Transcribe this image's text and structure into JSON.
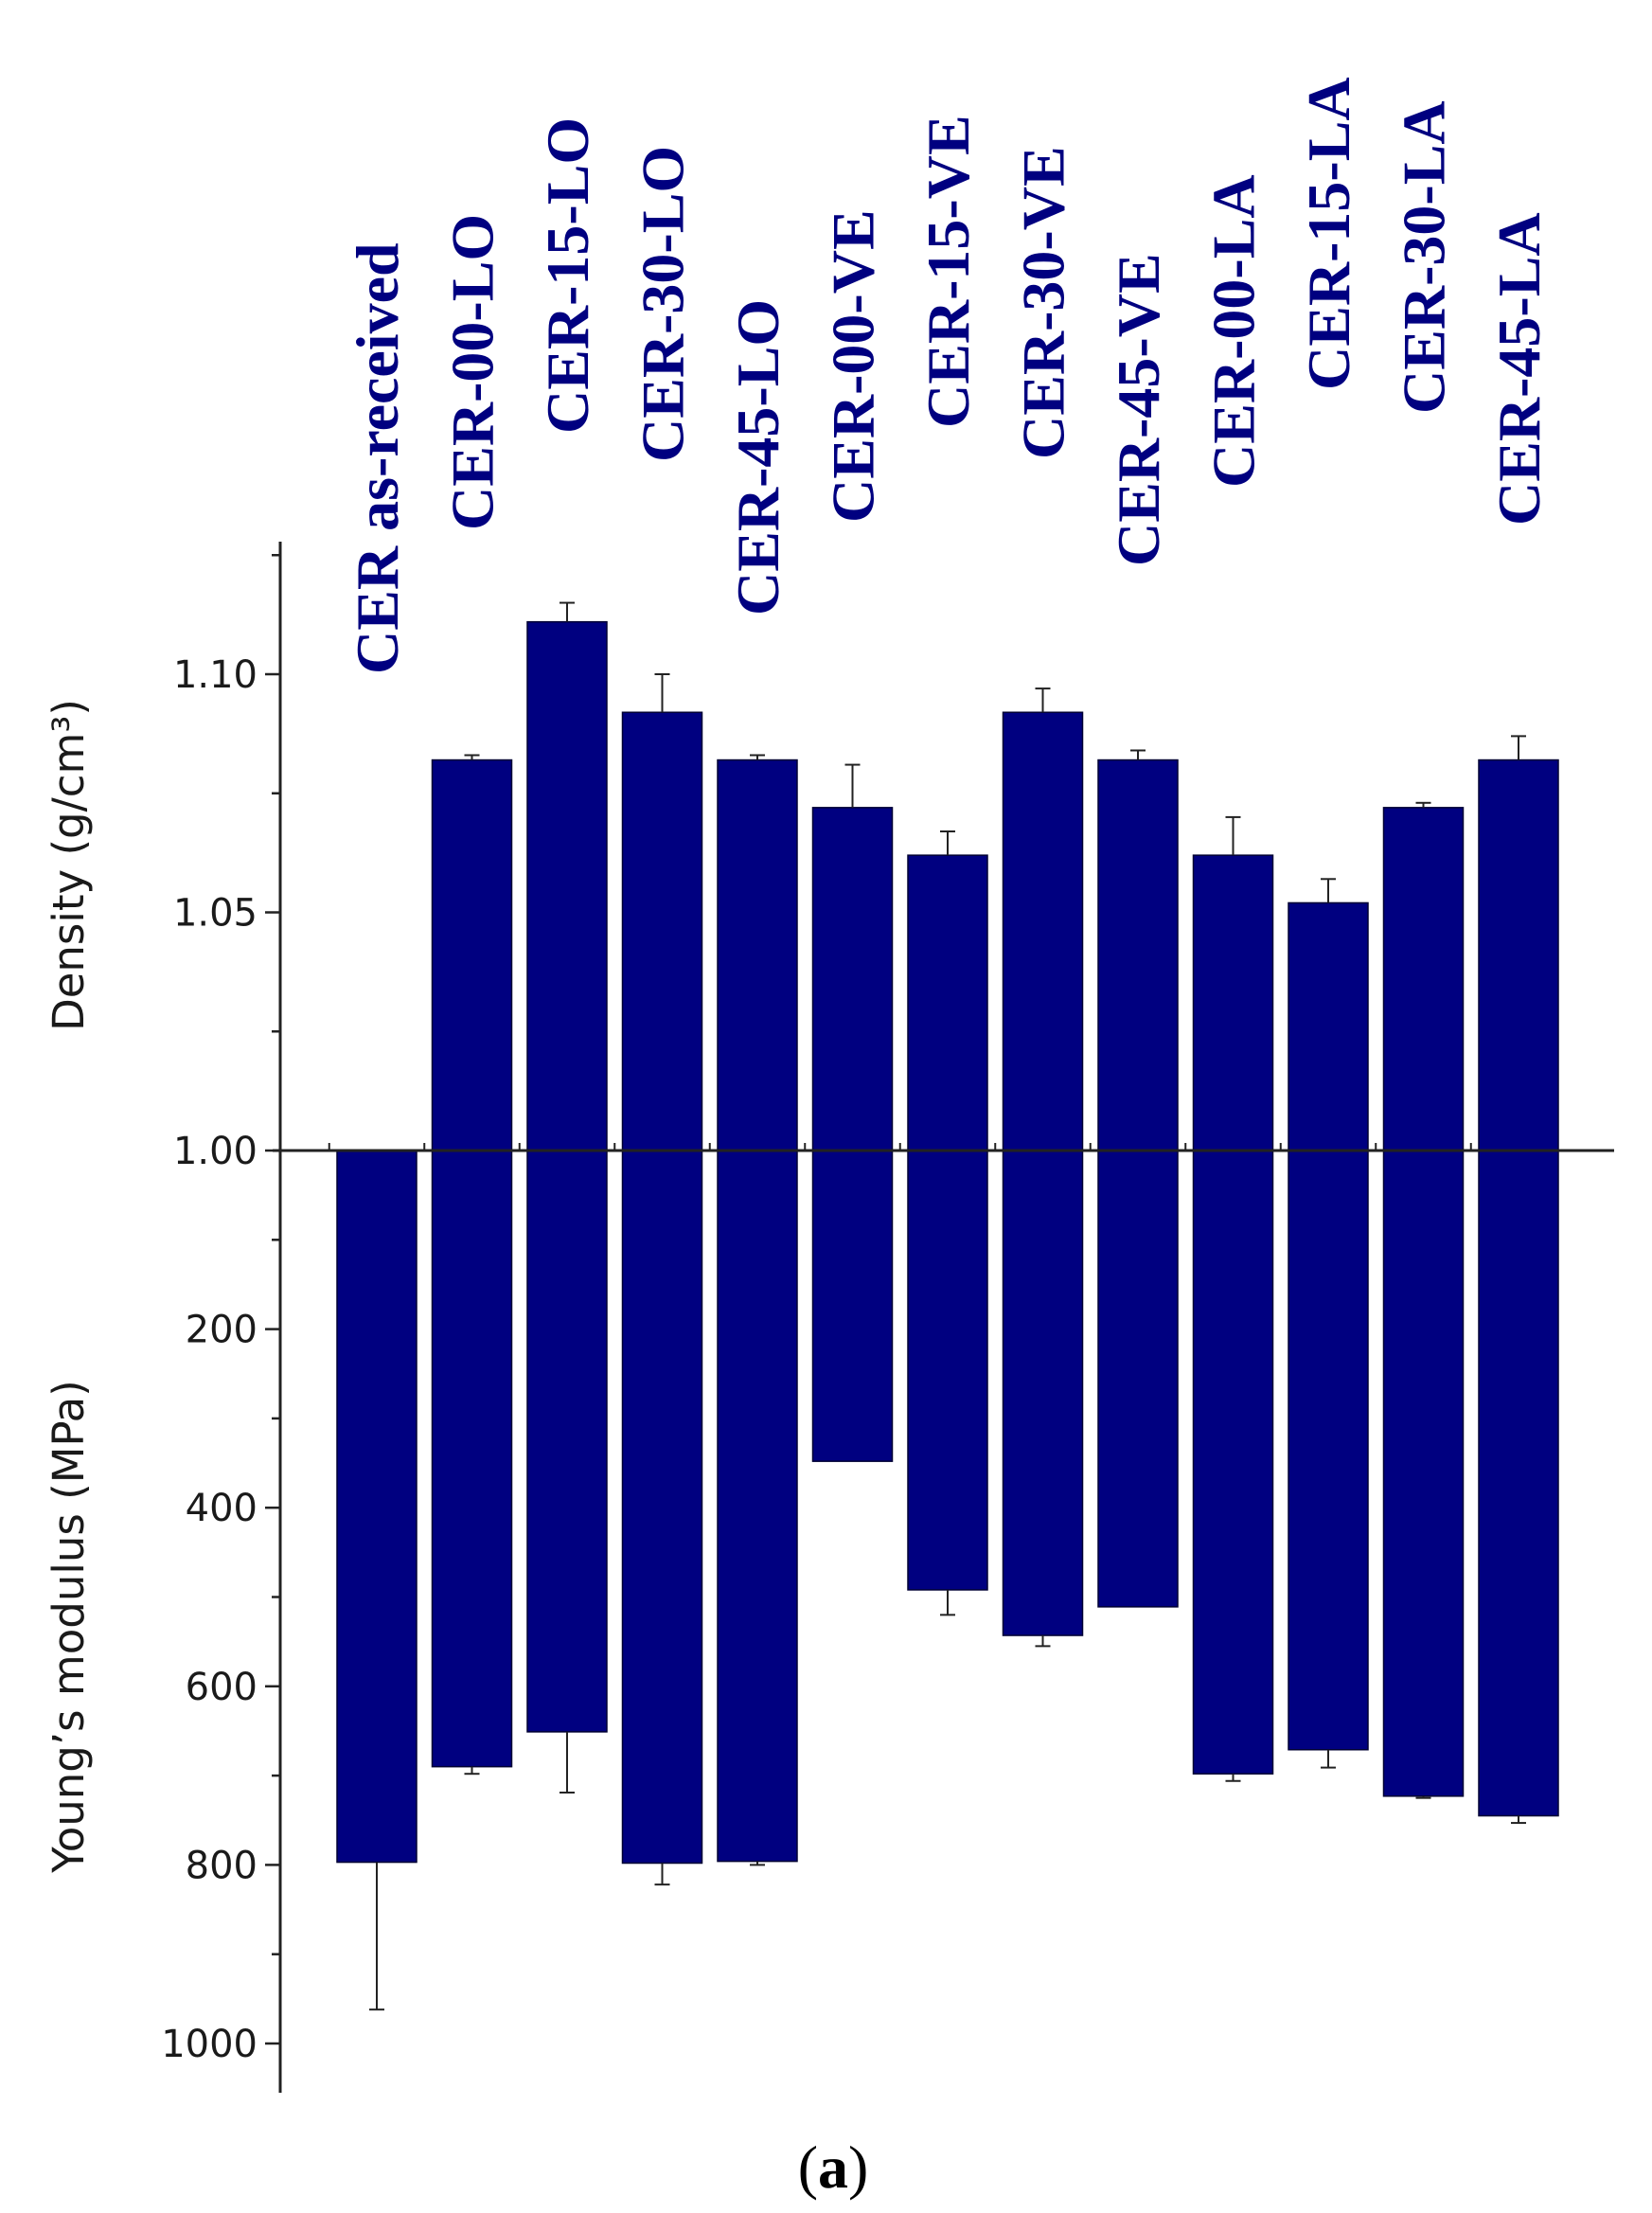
{
  "chart_data": {
    "type": "bar",
    "layout": "mirrored-vertical",
    "panel_label": "(a)",
    "bar_color": "#000080",
    "categories": [
      "CER as-received",
      "CER-00-LO",
      "CER-15-LO",
      "CER-30-LO",
      "CER-45-LO",
      "CER-00-VE",
      "CER-15-VE",
      "CER-30-VE",
      "CER-45-VE",
      "CER-00-LA",
      "CER-15-LA",
      "CER-30-LA",
      "CER-45-LA"
    ],
    "top": {
      "ylabel": "Density (g/cm³)",
      "ylim": [
        1.0,
        1.12
      ],
      "ticks": [
        "1.00",
        "1.05",
        "1.10"
      ],
      "values": [
        null,
        1.082,
        1.111,
        1.092,
        1.082,
        1.072,
        1.062,
        1.092,
        1.082,
        1.062,
        1.052,
        1.072,
        1.082
      ],
      "errors": [
        null,
        0.001,
        0.004,
        0.008,
        0.001,
        0.009,
        0.005,
        0.005,
        0.002,
        0.008,
        0.005,
        0.001,
        0.005
      ]
    },
    "bottom": {
      "ylabel": "Young’s modulus (MPa)",
      "ylim": [
        0,
        1000
      ],
      "inverted": true,
      "ticks": [
        "200",
        "400",
        "600",
        "800",
        "1000"
      ],
      "values": [
        797,
        690,
        651,
        798,
        796,
        348,
        492,
        543,
        511,
        698,
        671,
        723,
        745
      ],
      "errors": [
        165,
        8,
        68,
        24,
        4,
        0,
        28,
        12,
        0,
        8,
        20,
        2,
        8
      ]
    }
  }
}
